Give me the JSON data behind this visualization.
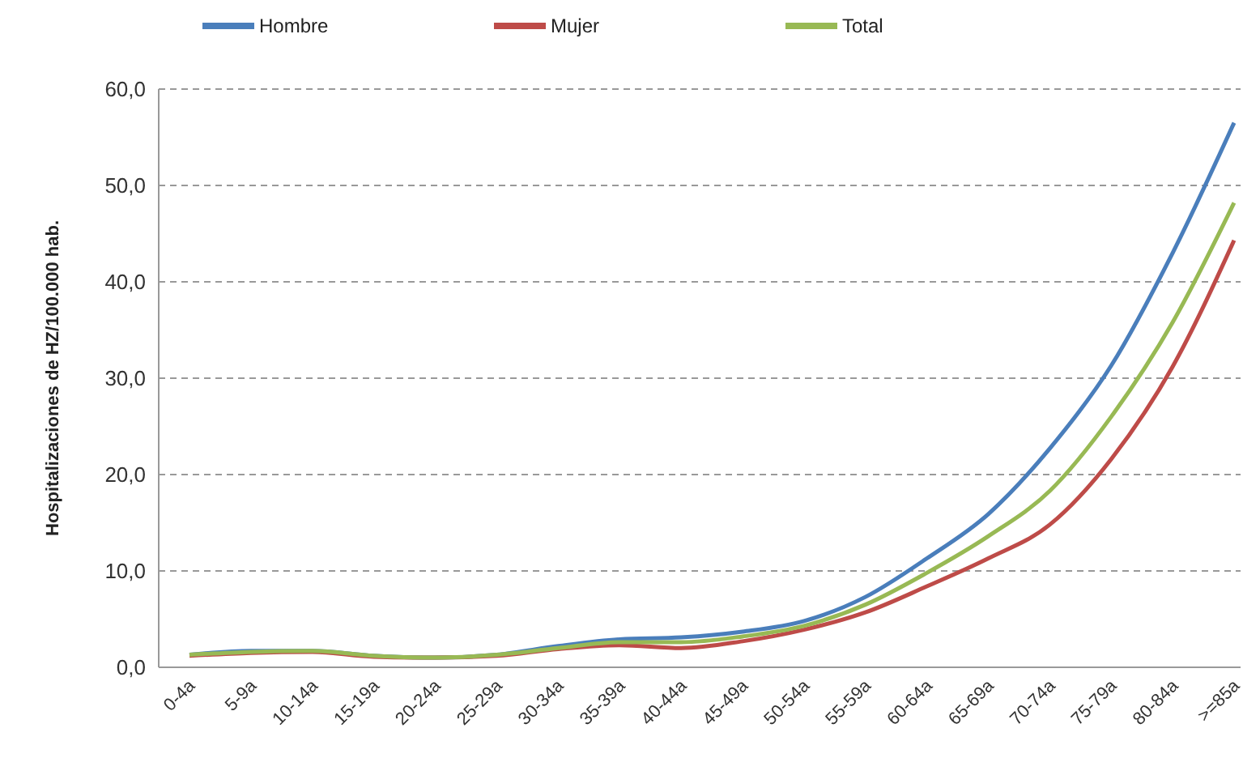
{
  "chart_data": {
    "type": "line",
    "ylabel": "Hospitalizaciones de HZ/100.000  hab.",
    "categories": [
      "0-4a",
      "5-9a",
      "10-14a",
      "15-19a",
      "20-24a",
      "25-29a",
      "30-34a",
      "35-39a",
      "40-44a",
      "45-49a",
      "50-54a",
      "55-59a",
      "60-64a",
      "65-69a",
      "70-74a",
      "75-79a",
      "80-84a",
      ">=85a"
    ],
    "series": [
      {
        "name": "Hombre",
        "color": "#4a7ebb",
        "values": [
          1.3,
          1.7,
          1.7,
          1.2,
          1.0,
          1.3,
          2.2,
          2.9,
          3.1,
          3.7,
          4.8,
          7.3,
          11.3,
          15.9,
          22.7,
          31.3,
          43.0,
          56.5
        ]
      },
      {
        "name": "Mujer",
        "color": "#be4b48",
        "values": [
          1.2,
          1.5,
          1.6,
          1.1,
          1.0,
          1.2,
          1.9,
          2.3,
          2.0,
          2.7,
          3.9,
          5.7,
          8.4,
          11.3,
          14.8,
          21.6,
          31.2,
          44.3
        ]
      },
      {
        "name": "Total",
        "color": "#98b954",
        "values": [
          1.3,
          1.6,
          1.7,
          1.2,
          1.0,
          1.3,
          2.0,
          2.6,
          2.6,
          3.2,
          4.3,
          6.5,
          9.8,
          13.6,
          18.3,
          26.0,
          35.8,
          48.2
        ]
      }
    ],
    "ylim": [
      0,
      60
    ],
    "yticks": [
      {
        "value": 0,
        "label": "0,0"
      },
      {
        "value": 10,
        "label": "10,0"
      },
      {
        "value": 20,
        "label": "20,0"
      },
      {
        "value": 30,
        "label": "30,0"
      },
      {
        "value": 40,
        "label": "40,0"
      },
      {
        "value": 50,
        "label": "50,0"
      },
      {
        "value": 60,
        "label": "60,0"
      }
    ],
    "grid": "y",
    "legend": "top",
    "marker": "none",
    "line_style": "solid"
  }
}
